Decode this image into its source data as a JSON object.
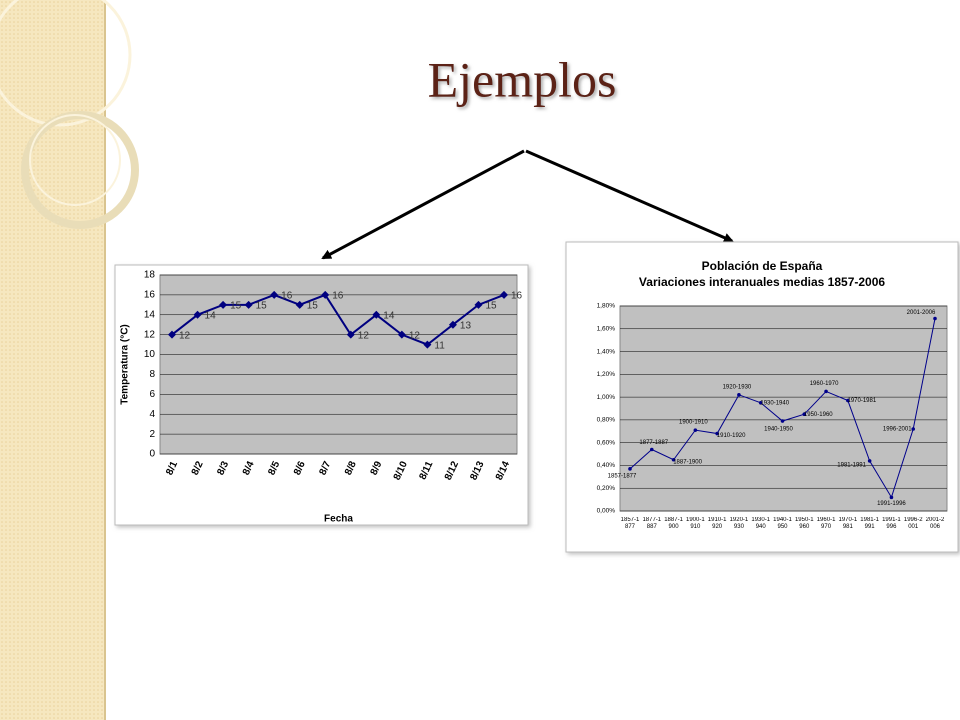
{
  "title": "Ejemplos",
  "chart_data": [
    {
      "type": "line",
      "categories": [
        "8/1",
        "8/2",
        "8/3",
        "8/4",
        "8/5",
        "8/6",
        "8/7",
        "8/8",
        "8/9",
        "8/10",
        "8/11",
        "8/12",
        "8/13",
        "8/14"
      ],
      "values": [
        12,
        14,
        15,
        15,
        16,
        15,
        16,
        12,
        14,
        12,
        11,
        13,
        15,
        16
      ],
      "color": "#000080",
      "y_label": "Temperatura (°C)",
      "x_label": "Fecha",
      "ylim": [
        0,
        18
      ],
      "yticks": [
        0,
        2,
        4,
        6,
        8,
        10,
        12,
        14,
        16,
        18
      ],
      "grid": true
    },
    {
      "type": "line",
      "title": "Población de España",
      "subtitle": "Variaciones interanuales medias 1857-2006",
      "categories": [
        "1857-1877",
        "1877-1887",
        "1887-1900",
        "1900-1910",
        "1910-1920",
        "1920-1930",
        "1930-1940",
        "1940-1950",
        "1950-1960",
        "1960-1970",
        "1970-1981",
        "1981-1991",
        "1991-1996",
        "1996-2001",
        "2001-2006"
      ],
      "values": [
        0.37,
        0.54,
        0.45,
        0.71,
        0.68,
        1.02,
        0.95,
        0.79,
        0.85,
        1.05,
        0.97,
        0.44,
        0.12,
        0.72,
        1.69
      ],
      "color": "#00008b",
      "ylim": [
        0,
        1.8
      ],
      "yticks": [
        {
          "value": 0,
          "label": "0,00%"
        },
        {
          "value": 0.2,
          "label": "0,20%"
        },
        {
          "value": 0.4,
          "label": "0,40%"
        },
        {
          "value": 0.6,
          "label": "0,60%"
        },
        {
          "value": 0.8,
          "label": "0,80%"
        },
        {
          "value": 1.0,
          "label": "1,00%"
        },
        {
          "value": 1.2,
          "label": "1,20%"
        },
        {
          "value": 1.4,
          "label": "1,40%"
        },
        {
          "value": 1.6,
          "label": "1,60%"
        },
        {
          "value": 1.8,
          "label": "1,80%"
        }
      ],
      "grid": true
    }
  ]
}
